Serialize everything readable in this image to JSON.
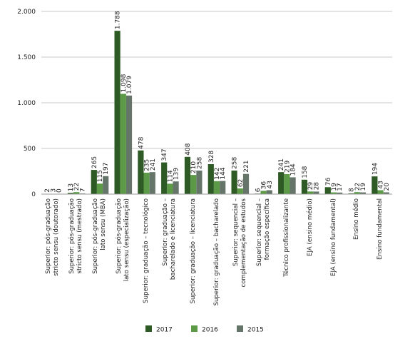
{
  "chart_data": {
    "type": "bar",
    "categories": [
      "Superior: pós-graduação\nstricto sensu (doutorado)",
      "Superior: pós-graduação\nstricto sensu (mestrado)",
      "Superior: pós-graduação\nlato sensu (MBA)",
      "Superior: pós-graduação\nlato sensu (especialização)",
      "Superior: graduação – tecnológico",
      "Superior: graduação –\nbacharelado e licenciatura",
      "Superior: graduação – licenciatura",
      "Superior: graduação – bacharelado",
      "Superior: sequencial –\ncomplementação de estudos",
      "Superior: sequencial –\nformação específica",
      "Técnico profissionalizante",
      "EJA (ensino médio)",
      "EJA (ensino fundamental)",
      "Ensino médio",
      "Ensino fundamental"
    ],
    "series": [
      {
        "name": "2017",
        "color": "#2e5b25",
        "values": [
          2,
          13,
          265,
          1788,
          478,
          347,
          408,
          328,
          258,
          6,
          241,
          158,
          76,
          8,
          194
        ],
        "value_labels": [
          "2",
          "13",
          "265",
          "1.788",
          "478",
          "347",
          "408",
          "328",
          "258",
          "6",
          "241",
          "158",
          "76",
          "8",
          "194"
        ]
      },
      {
        "name": "2016",
        "color": "#5c9a48",
        "values": [
          3,
          22,
          115,
          1098,
          235,
          114,
          210,
          142,
          62,
          36,
          219,
          29,
          19,
          22,
          43
        ],
        "value_labels": [
          "3",
          "22",
          "115",
          "1.098",
          "235",
          "114",
          "210",
          "142",
          "62",
          "36",
          "219",
          "29",
          "19",
          "22",
          "43"
        ]
      },
      {
        "name": "2015",
        "color": "#66756a",
        "values": [
          0,
          7,
          197,
          1079,
          241,
          139,
          258,
          144,
          221,
          43,
          184,
          28,
          17,
          19,
          20
        ],
        "value_labels": [
          "0",
          "7",
          "197",
          "1.079",
          "241",
          "139",
          "258",
          "144",
          "221",
          "43",
          "184",
          "28",
          "17",
          "19",
          "20"
        ]
      }
    ],
    "ylim": [
      0,
      2000
    ],
    "yticks": [
      0,
      500,
      {
        "value": 1000,
        "label": "1.000"
      },
      {
        "value": 1500,
        "label": "1.500"
      },
      {
        "value": 2000,
        "label": "2.000"
      }
    ],
    "grid": true
  }
}
